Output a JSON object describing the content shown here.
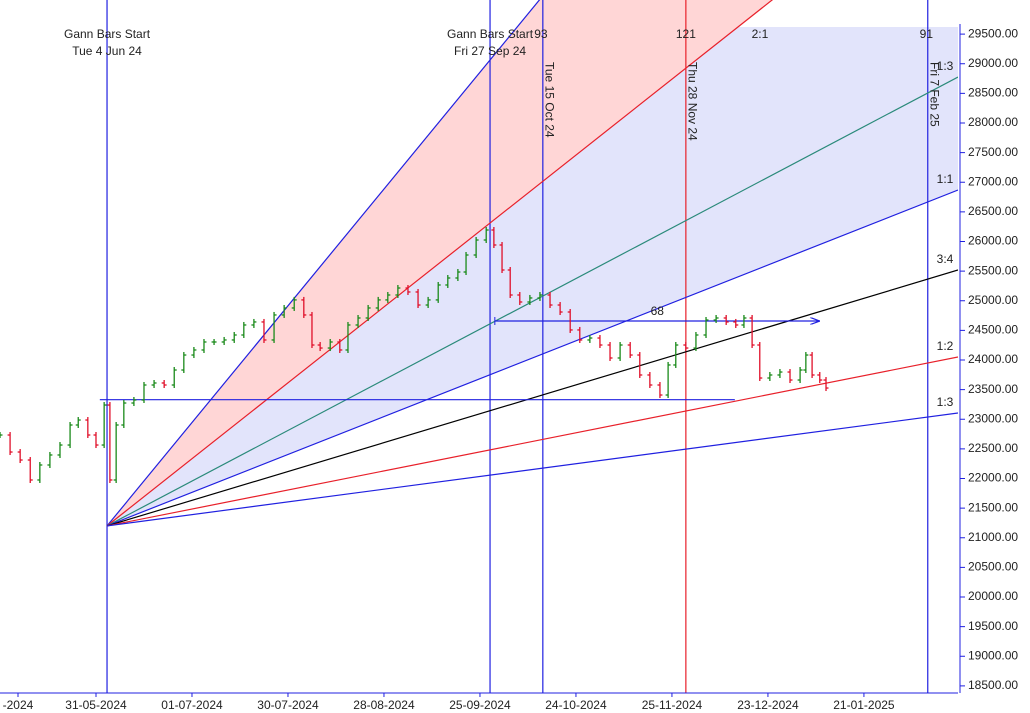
{
  "chart_data": {
    "type": "ohlc",
    "xlim": [
      0,
      199.6
    ],
    "ylim": [
      18380,
      29620
    ],
    "xticks": [
      {
        "value": 3.75,
        "label": "-2024"
      },
      {
        "value": 20,
        "label": "31-05-2024"
      },
      {
        "value": 40,
        "label": "01-07-2024"
      },
      {
        "value": 60,
        "label": "30-07-2024"
      },
      {
        "value": 80,
        "label": "28-08-2024"
      },
      {
        "value": 100,
        "label": "25-09-2024"
      },
      {
        "value": 120,
        "label": "24-10-2024"
      },
      {
        "value": 140,
        "label": "25-11-2024"
      },
      {
        "value": 160,
        "label": "23-12-2024"
      },
      {
        "value": 180,
        "label": "21-01-2025"
      }
    ],
    "yticks": [
      {
        "value": 18500,
        "label": "18500.00"
      },
      {
        "value": 19000,
        "label": "19000.00"
      },
      {
        "value": 19500,
        "label": "19500.00"
      },
      {
        "value": 20000,
        "label": "20000.00"
      },
      {
        "value": 20500,
        "label": "20500.00"
      },
      {
        "value": 21000,
        "label": "21000.00"
      },
      {
        "value": 21500,
        "label": "21500.00"
      },
      {
        "value": 22000,
        "label": "22000.00"
      },
      {
        "value": 22500,
        "label": "22500.00"
      },
      {
        "value": 23000,
        "label": "23000.00"
      },
      {
        "value": 23500,
        "label": "23500.00"
      },
      {
        "value": 24000,
        "label": "24000.00"
      },
      {
        "value": 24500,
        "label": "24500.00"
      },
      {
        "value": 25000,
        "label": "25000.00"
      },
      {
        "value": 25500,
        "label": "25500.00"
      },
      {
        "value": 26000,
        "label": "26000.00"
      },
      {
        "value": 26500,
        "label": "26500.00"
      },
      {
        "value": 27000,
        "label": "27000.00"
      },
      {
        "value": 27500,
        "label": "27500.00"
      },
      {
        "value": 28000,
        "label": "28000.00"
      },
      {
        "value": 28500,
        "label": "28500.00"
      },
      {
        "value": 29000,
        "label": "29000.00"
      },
      {
        "value": 29500,
        "label": "29500.00"
      }
    ],
    "up_color": "#1a8a1a",
    "down_color": "#e0102a",
    "x": [
      0,
      2.1,
      4.2,
      6.3,
      8.3,
      10.4,
      12.5,
      14.6,
      16.3,
      18.3,
      20,
      21.7,
      22.9,
      24.2,
      25.8,
      27.9,
      30,
      32.1,
      34.2,
      36.3,
      38.3,
      40.4,
      42.5,
      44.6,
      46.7,
      48.8,
      50.8,
      52.9,
      55,
      57.1,
      59.2,
      61.3,
      63.3,
      65,
      66.7,
      68.8,
      70.8,
      72.5,
      74.6,
      76.7,
      78.8,
      80.8,
      82.9,
      85,
      87.1,
      89.2,
      91.3,
      93.3,
      95.4,
      97.1,
      99.2,
      101.3,
      102.9,
      104.6,
      106.3,
      108.3,
      110.4,
      112.5,
      114.6,
      116.7,
      118.8,
      120.8,
      122.9,
      125,
      127.1,
      129.2,
      131.3,
      133.3,
      135.4,
      137.5,
      139.2,
      140.8,
      142.9,
      145,
      147.1,
      149.2,
      151.3,
      153.3,
      155,
      156.7,
      158.3,
      160.4,
      162.5,
      164.6,
      166.7,
      167.9,
      169.2,
      170.8,
      172.1
    ],
    "values": [
      22734,
      22447,
      22312,
      21975,
      22228,
      22397,
      22565,
      22903,
      22987,
      22734,
      22565,
      23240,
      21975,
      22903,
      23274,
      23325,
      23578,
      23612,
      23578,
      23831,
      24084,
      24169,
      24304,
      24304,
      24338,
      24422,
      24591,
      24642,
      24338,
      24760,
      24878,
      25014,
      24760,
      24253,
      24202,
      24304,
      24169,
      24591,
      24709,
      24878,
      25014,
      25097,
      25215,
      25148,
      24928,
      25014,
      25266,
      25384,
      25485,
      25772,
      26025,
      26194,
      25941,
      25519,
      25097,
      24979,
      25047,
      25097,
      24928,
      24810,
      24507,
      24338,
      24371,
      24253,
      24034,
      24253,
      24084,
      23747,
      23578,
      23409,
      23916,
      24253,
      24202,
      24422,
      24675,
      24709,
      24642,
      24591,
      24709,
      24253,
      23696,
      23747,
      23797,
      23662,
      23831,
      24084,
      23747,
      23662,
      23527
    ],
    "fan": {
      "origin_x": 22.3,
      "origin_value": 21200,
      "lines": [
        {
          "color": "#2020e0",
          "end_x": 102.1,
          "end_value": 29063
        },
        {
          "color": "#e8202a",
          "end_x": 153.75,
          "end_value": 29620,
          "label": "2:1"
        },
        {
          "color": "#2a8a7a",
          "end_x": 199.6,
          "end_value": 28776,
          "label": "1:3"
        },
        {
          "color": "#2020e0",
          "end_x": 199.6,
          "end_value": 26869,
          "label": "1:1"
        },
        {
          "color": "#000000",
          "end_x": 199.6,
          "end_value": 25519,
          "label": "3:4"
        },
        {
          "color": "#e8202a",
          "end_x": 199.6,
          "end_value": 24051,
          "label": "1:2"
        },
        {
          "color": "#2020e0",
          "end_x": 199.6,
          "end_value": 23105,
          "label": "1:3"
        }
      ]
    },
    "verticals": [
      {
        "x": 22.3,
        "color": "#2020e0",
        "style": "horizontal",
        "label": [
          "Gann Bars Start",
          "Tue 4 Jun 24"
        ]
      },
      {
        "x": 102.1,
        "color": "#2020e0",
        "style": "horizontal",
        "label": [
          "Gann Bars Start",
          "Fri 27 Sep 24"
        ]
      },
      {
        "x": 113.1,
        "color": "#2020e0",
        "style": "rotated",
        "label": [
          "Tue 15 Oct 24"
        ]
      },
      {
        "x": 142.9,
        "color": "#e8202a",
        "style": "rotated",
        "label": [
          "Thu 28 Nov 24"
        ]
      },
      {
        "x": 193.3,
        "color": "#2020e0",
        "style": "rotated",
        "label": [
          "Fri 7 Feb 25"
        ]
      }
    ],
    "counts": [
      {
        "x": 112.7,
        "value": 93
      },
      {
        "x": 142.9,
        "value": 121
      },
      {
        "x": 193,
        "value": 91
      }
    ],
    "hline": {
      "value": 23330,
      "x0": 20.8,
      "x1": 153.1,
      "color": "#2020e0"
    },
    "arrow": {
      "value": 24658,
      "x0": 103.1,
      "x1": 170.8,
      "label": 68,
      "color": "#2020e0"
    }
  }
}
